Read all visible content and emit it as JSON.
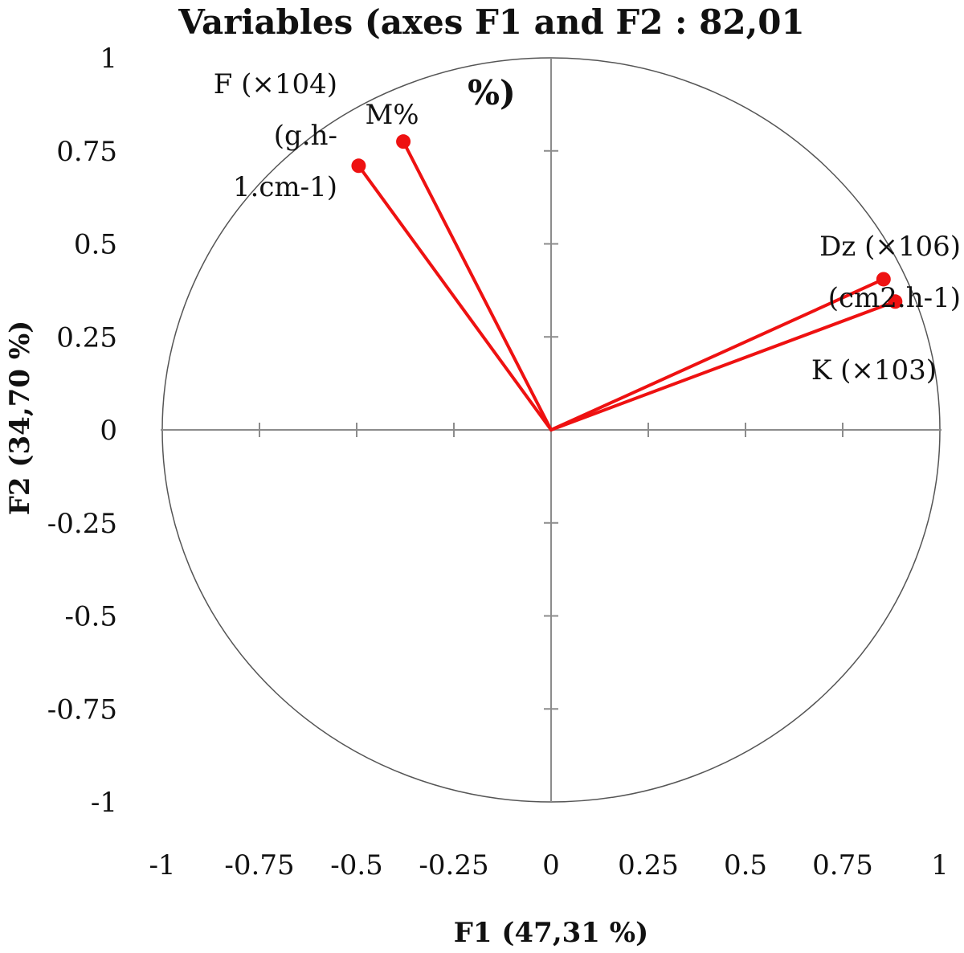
{
  "chart_data": {
    "type": "scatter",
    "subtype": "correlation-circle",
    "title_line1": "Variables (axes F1 and F2 : 82,01",
    "title_line2": "%)",
    "xlabel": "F1 (47,31 %)",
    "ylabel": "F2 (34,70 %)",
    "xlim": [
      -1,
      1
    ],
    "ylim": [
      -1,
      1
    ],
    "xticks": [
      "-1",
      "-0.75",
      "-0.5",
      "-0.25",
      "0",
      "0.25",
      "0.5",
      "0.75",
      "1"
    ],
    "yticks": [
      "1",
      "0.75",
      "0.5",
      "0.25",
      "0",
      "-0.25",
      "-0.5",
      "-0.75",
      "-1"
    ],
    "unit_circle": true,
    "vector_color": "#ee1111",
    "series": [
      {
        "name": "F (×104) (g.h-1.cm-1)",
        "label_lines": [
          "F (×104)",
          "(g.h-",
          "1.cm-1)"
        ],
        "x": -0.495,
        "y": 0.71
      },
      {
        "name": "M%",
        "label_lines": [
          "M%"
        ],
        "x": -0.38,
        "y": 0.775
      },
      {
        "name": "Dz (×106) (cm2.h-1)",
        "label_lines": [
          "Dz (×106)",
          "(cm2.h-1)"
        ],
        "x": 0.855,
        "y": 0.405
      },
      {
        "name": "K (×103)",
        "label_lines": [
          "K (×103)"
        ],
        "x": 0.885,
        "y": 0.345
      }
    ]
  }
}
